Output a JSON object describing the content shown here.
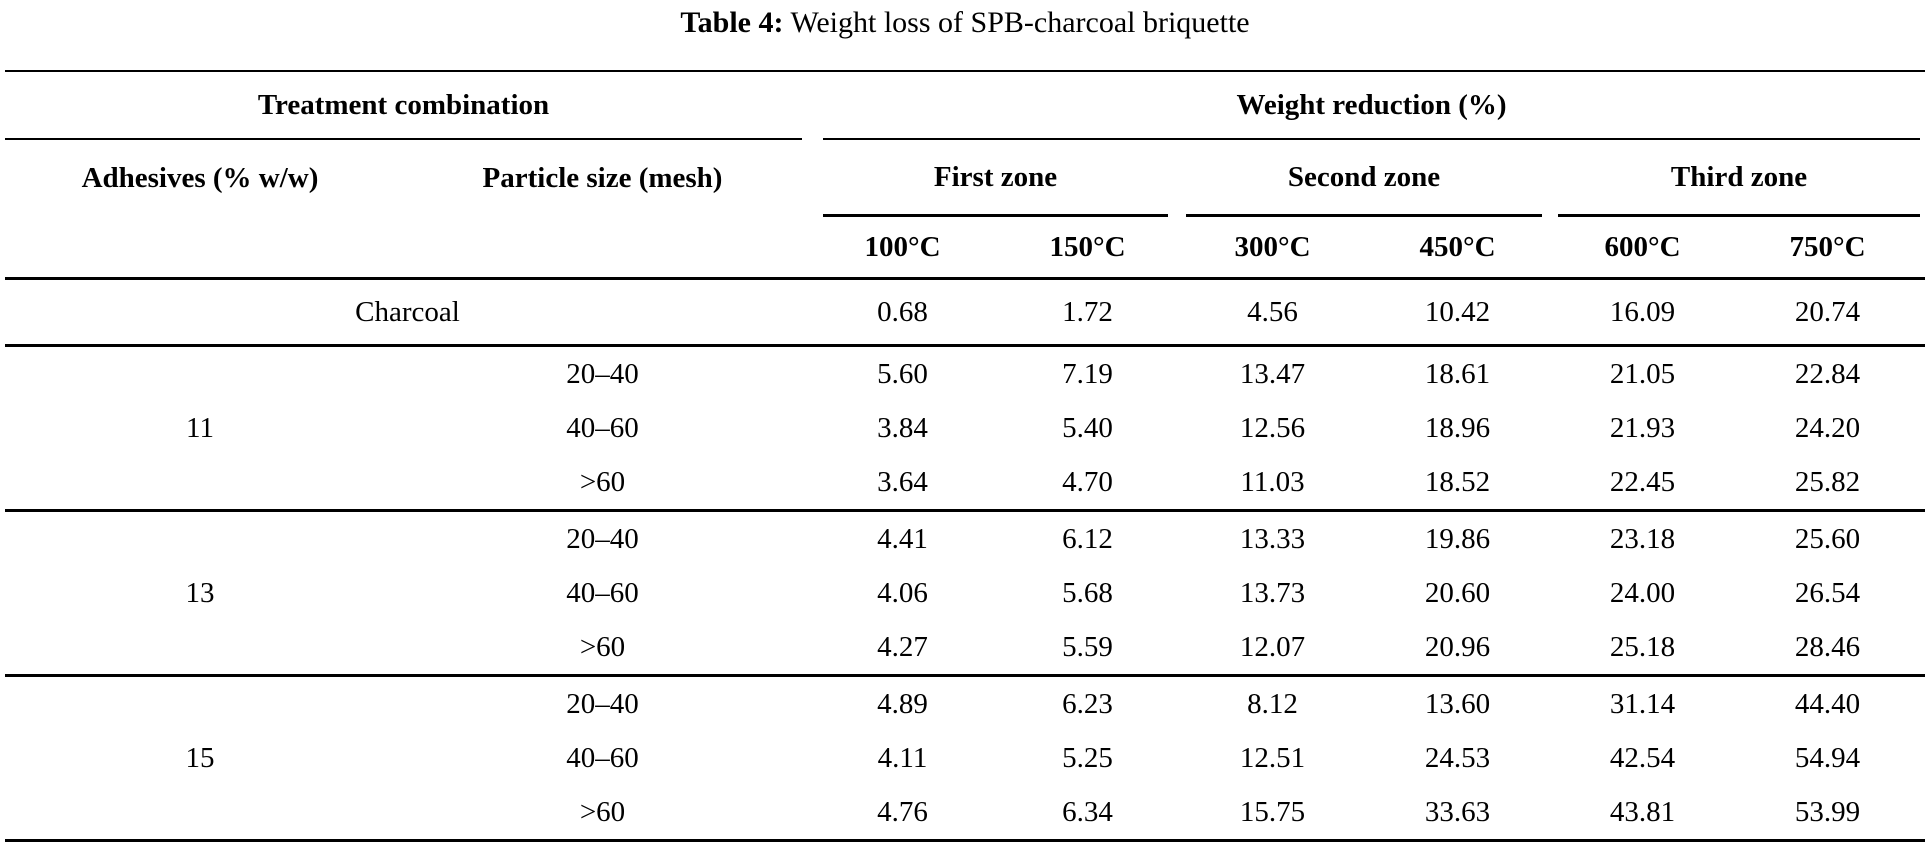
{
  "title": {
    "label": "Table 4:",
    "text": " Weight loss of SPB-charcoal briquette"
  },
  "table": {
    "header": {
      "treatment_combination": "Treatment combination",
      "weight_reduction": "Weight reduction (%)",
      "adhesives": "Adhesives (% w/w)",
      "particle_size": "Particle size (mesh)",
      "zones": [
        "First zone",
        "Second zone",
        "Third zone"
      ],
      "temperatures": [
        "100°C",
        "150°C",
        "300°C",
        "450°C",
        "600°C",
        "750°C"
      ]
    },
    "charcoal_row": {
      "label": "Charcoal",
      "values": [
        "0.68",
        "1.72",
        "4.56",
        "10.42",
        "16.09",
        "20.74"
      ]
    },
    "groups": [
      {
        "adhesive": "11",
        "rows": [
          {
            "particle_size": "20–40",
            "values": [
              "5.60",
              "7.19",
              "13.47",
              "18.61",
              "21.05",
              "22.84"
            ]
          },
          {
            "particle_size": "40–60",
            "values": [
              "3.84",
              "5.40",
              "12.56",
              "18.96",
              "21.93",
              "24.20"
            ]
          },
          {
            "particle_size": ">60",
            "values": [
              "3.64",
              "4.70",
              "11.03",
              "18.52",
              "22.45",
              "25.82"
            ]
          }
        ]
      },
      {
        "adhesive": "13",
        "rows": [
          {
            "particle_size": "20–40",
            "values": [
              "4.41",
              "6.12",
              "13.33",
              "19.86",
              "23.18",
              "25.60"
            ]
          },
          {
            "particle_size": "40–60",
            "values": [
              "4.06",
              "5.68",
              "13.73",
              "20.60",
              "24.00",
              "26.54"
            ]
          },
          {
            "particle_size": ">60",
            "values": [
              "4.27",
              "5.59",
              "12.07",
              "20.96",
              "25.18",
              "28.46"
            ]
          }
        ]
      },
      {
        "adhesive": "15",
        "rows": [
          {
            "particle_size": "20–40",
            "values": [
              "4.89",
              "6.23",
              "8.12",
              "13.60",
              "31.14",
              "44.40"
            ]
          },
          {
            "particle_size": "40–60",
            "values": [
              "4.11",
              "5.25",
              "12.51",
              "24.53",
              "42.54",
              "54.94"
            ]
          },
          {
            "particle_size": ">60",
            "values": [
              "4.76",
              "6.34",
              "15.75",
              "33.63",
              "43.81",
              "53.99"
            ]
          }
        ]
      }
    ]
  }
}
